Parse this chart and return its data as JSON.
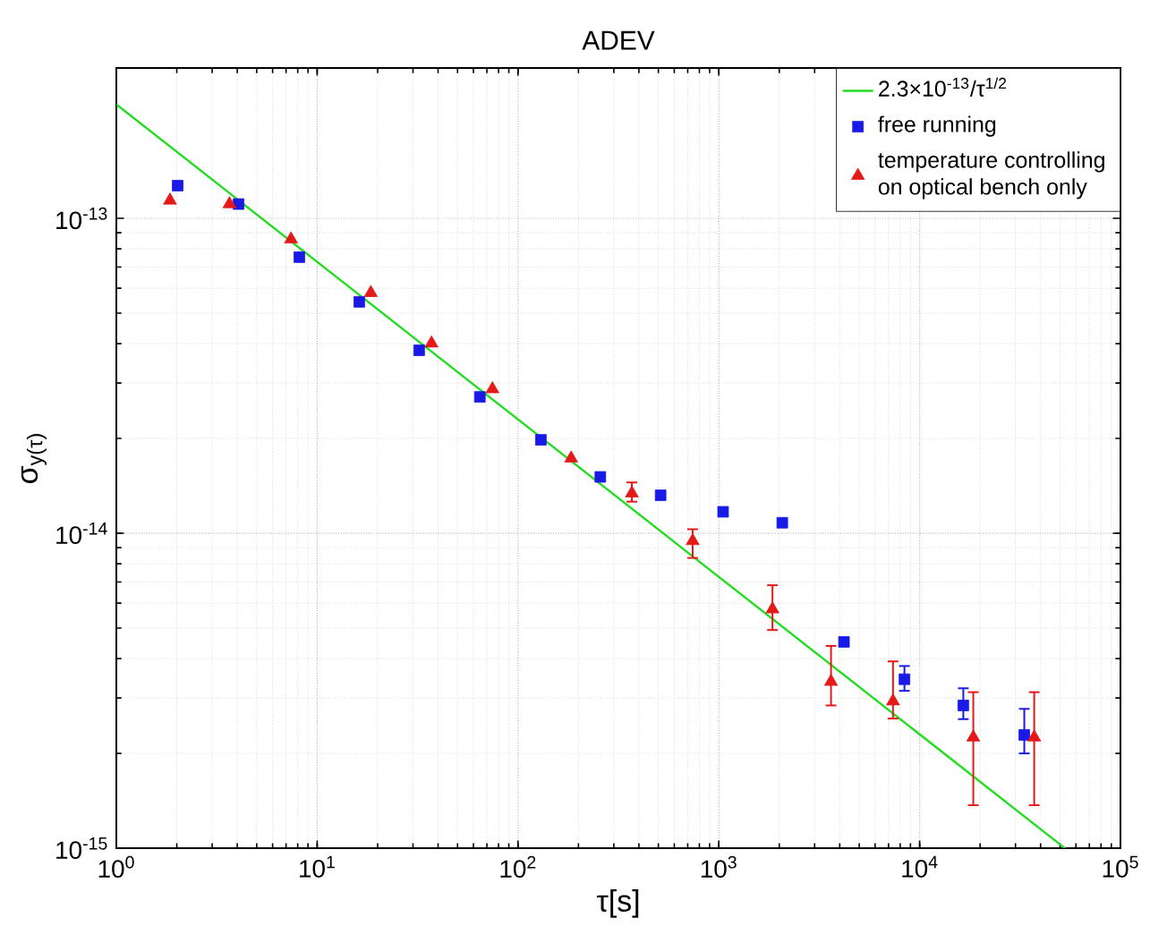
{
  "chart_data": {
    "type": "scatter",
    "title": "ADEV",
    "xlabel": "τ[s]",
    "ylabel": "σ$_{y(τ)}$",
    "log": "xy",
    "grid": true,
    "legend": "top right",
    "xlim": [
      1,
      100000
    ],
    "ylim": [
      1e-15,
      3e-13
    ],
    "xticks": [
      {
        "value": 1,
        "label": "10$^{0}$"
      },
      {
        "value": 10,
        "label": "10$^{1}$"
      },
      {
        "value": 100,
        "label": "10$^{2}$"
      },
      {
        "value": 1000,
        "label": "10$^{3}$"
      },
      {
        "value": 10000,
        "label": "10$^{4}$"
      },
      {
        "value": 100000,
        "label": "10$^{5}$"
      }
    ],
    "yticks": [
      {
        "value": 1e-15,
        "label": "10$^{-15}$"
      },
      {
        "value": 1e-14,
        "label": "10$^{-14}$"
      },
      {
        "value": 1e-13,
        "label": "10$^{-13}$"
      }
    ],
    "series": [
      {
        "name": "2.3×10$^{-13}$/τ$^{1/2}$",
        "type": "line",
        "marker": "none",
        "color": "#22dd22",
        "x": [
          1,
          52900
        ],
        "values": [
          2.3e-13,
          1e-15
        ]
      },
      {
        "name": "free running",
        "marker": "square",
        "color": "#1a1ae6",
        "x": [
          2.02,
          4.06,
          8.15,
          16.2,
          32.2,
          64.6,
          130,
          257,
          513,
          1050,
          2070,
          4200,
          8400,
          16500,
          33200
        ],
        "values": [
          1.27e-13,
          1.11e-13,
          7.53e-14,
          5.43e-14,
          3.81e-14,
          2.71e-14,
          1.98e-14,
          1.51e-14,
          1.32e-14,
          1.17e-14,
          1.08e-14,
          4.52e-15,
          3.44e-15,
          2.84e-15,
          2.29e-15
        ],
        "errors": [
          null,
          null,
          null,
          null,
          null,
          null,
          null,
          null,
          null,
          null,
          null,
          null,
          [
            3.16e-15,
            3.79e-15
          ],
          [
            2.57e-15,
            3.22e-15
          ],
          [
            2e-15,
            2.77e-15
          ]
        ]
      },
      {
        "name": "temperature controlling on optical bench only",
        "marker": "triangle",
        "color": "#e61919",
        "x": [
          1.85,
          3.66,
          7.41,
          18.5,
          37.1,
          74.6,
          184,
          369,
          741,
          1850,
          3620,
          7370,
          18500,
          37200
        ],
        "values": [
          1.14e-13,
          1.11e-13,
          8.58e-14,
          5.8e-14,
          4.01e-14,
          2.87e-14,
          1.73e-14,
          1.34e-14,
          9.46e-15,
          5.74e-15,
          3.38e-15,
          2.93e-15,
          2.25e-15,
          2.25e-15
        ],
        "errors": [
          null,
          null,
          null,
          null,
          null,
          null,
          null,
          [
            1.26e-14,
            1.45e-14
          ],
          [
            8.35e-15,
            1.03e-14
          ],
          [
            4.93e-15,
            6.84e-15
          ],
          [
            2.84e-15,
            4.39e-15
          ],
          [
            2.58e-15,
            3.92e-15
          ],
          [
            1.37e-15,
            3.13e-15
          ],
          [
            1.37e-15,
            3.13e-15
          ]
        ]
      }
    ]
  }
}
